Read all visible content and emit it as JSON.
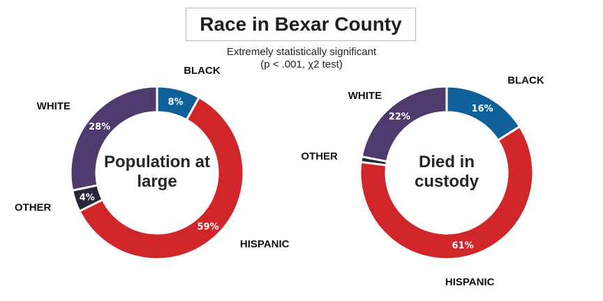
{
  "chart": {
    "title": "Race in Bexar County",
    "subtitle_line1": "Extremely statistically significant",
    "subtitle_line2": "(p < .001, χ2 test)"
  },
  "colors": {
    "BLACK": "#10609a",
    "HISPANIC": "#d0262a",
    "OTHER": "#242736",
    "WHITE": "#4e3a6d",
    "separator": "#ffffff",
    "label_dark": "#111111",
    "center_text": "#262626"
  },
  "chart_data": [
    {
      "type": "pie",
      "variant": "donut",
      "center_label": [
        "Population at",
        "large"
      ],
      "slices": [
        {
          "label": "BLACK",
          "value": 8,
          "value_label": "8%"
        },
        {
          "label": "HISPANIC",
          "value": 59,
          "value_label": "59%"
        },
        {
          "label": "OTHER",
          "value": 4,
          "value_label": "4%"
        },
        {
          "label": "WHITE",
          "value": 28,
          "value_label": "28%"
        }
      ]
    },
    {
      "type": "pie",
      "variant": "donut",
      "center_label": [
        "Died in",
        "custody"
      ],
      "slices": [
        {
          "label": "BLACK",
          "value": 16,
          "value_label": "16%"
        },
        {
          "label": "HISPANIC",
          "value": 61,
          "value_label": "61%"
        },
        {
          "label": "OTHER",
          "value": 1,
          "value_label": ""
        },
        {
          "label": "WHITE",
          "value": 22,
          "value_label": "22%"
        }
      ]
    }
  ]
}
